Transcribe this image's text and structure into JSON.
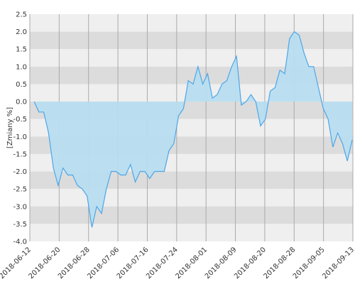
{
  "chart_data": {
    "type": "area",
    "title": "",
    "xlabel": "",
    "ylabel": "[Zmiany %]",
    "ylim": [
      -4.0,
      2.5
    ],
    "yticks": [
      "2.5",
      "2.0",
      "1.5",
      "1.0",
      "0.5",
      "0.0",
      "-0.5",
      "-1.0",
      "-1.5",
      "-2.0",
      "-2.5",
      "-3.0",
      "-3.5",
      "-4.0"
    ],
    "xtick_labels": [
      "2018-06-12",
      "2018-06-20",
      "2018-06-28",
      "2018-07-06",
      "2018-07-16",
      "2018-07-24",
      "2018-08-01",
      "2018-08-09",
      "2018-08-20",
      "2018-08-28",
      "2018-09-05",
      "2018-09-13"
    ],
    "grid": true,
    "colors": {
      "line": "#4da6e8",
      "fill": "#b7ddef",
      "band_dark": "#dcdcdc",
      "band_light": "#efefef",
      "gridline": "#aaaaaa"
    },
    "series": [
      {
        "values": [
          0.0,
          -0.3,
          -0.3,
          -0.9,
          -1.9,
          -2.4,
          -1.9,
          -2.1,
          -2.1,
          -2.4,
          -2.5,
          -2.7,
          -3.6,
          -3.0,
          -3.2,
          -2.5,
          -2.0,
          -2.0,
          -2.1,
          -2.1,
          -1.8,
          -2.3,
          -2.0,
          -2.0,
          -2.2,
          -2.0,
          -2.0,
          -2.0,
          -1.4,
          -1.2,
          -0.4,
          -0.2,
          0.6,
          0.5,
          1.0,
          0.5,
          0.8,
          0.1,
          0.2,
          0.5,
          0.6,
          1.0,
          1.3,
          -0.1,
          0.0,
          0.2,
          0.0,
          -0.7,
          -0.5,
          0.3,
          0.4,
          0.9,
          0.8,
          1.8,
          2.0,
          1.9,
          1.4,
          1.0,
          1.0,
          0.4,
          -0.2,
          -0.5,
          -1.3,
          -0.9,
          -1.2,
          -1.7,
          -1.1
        ]
      }
    ]
  }
}
